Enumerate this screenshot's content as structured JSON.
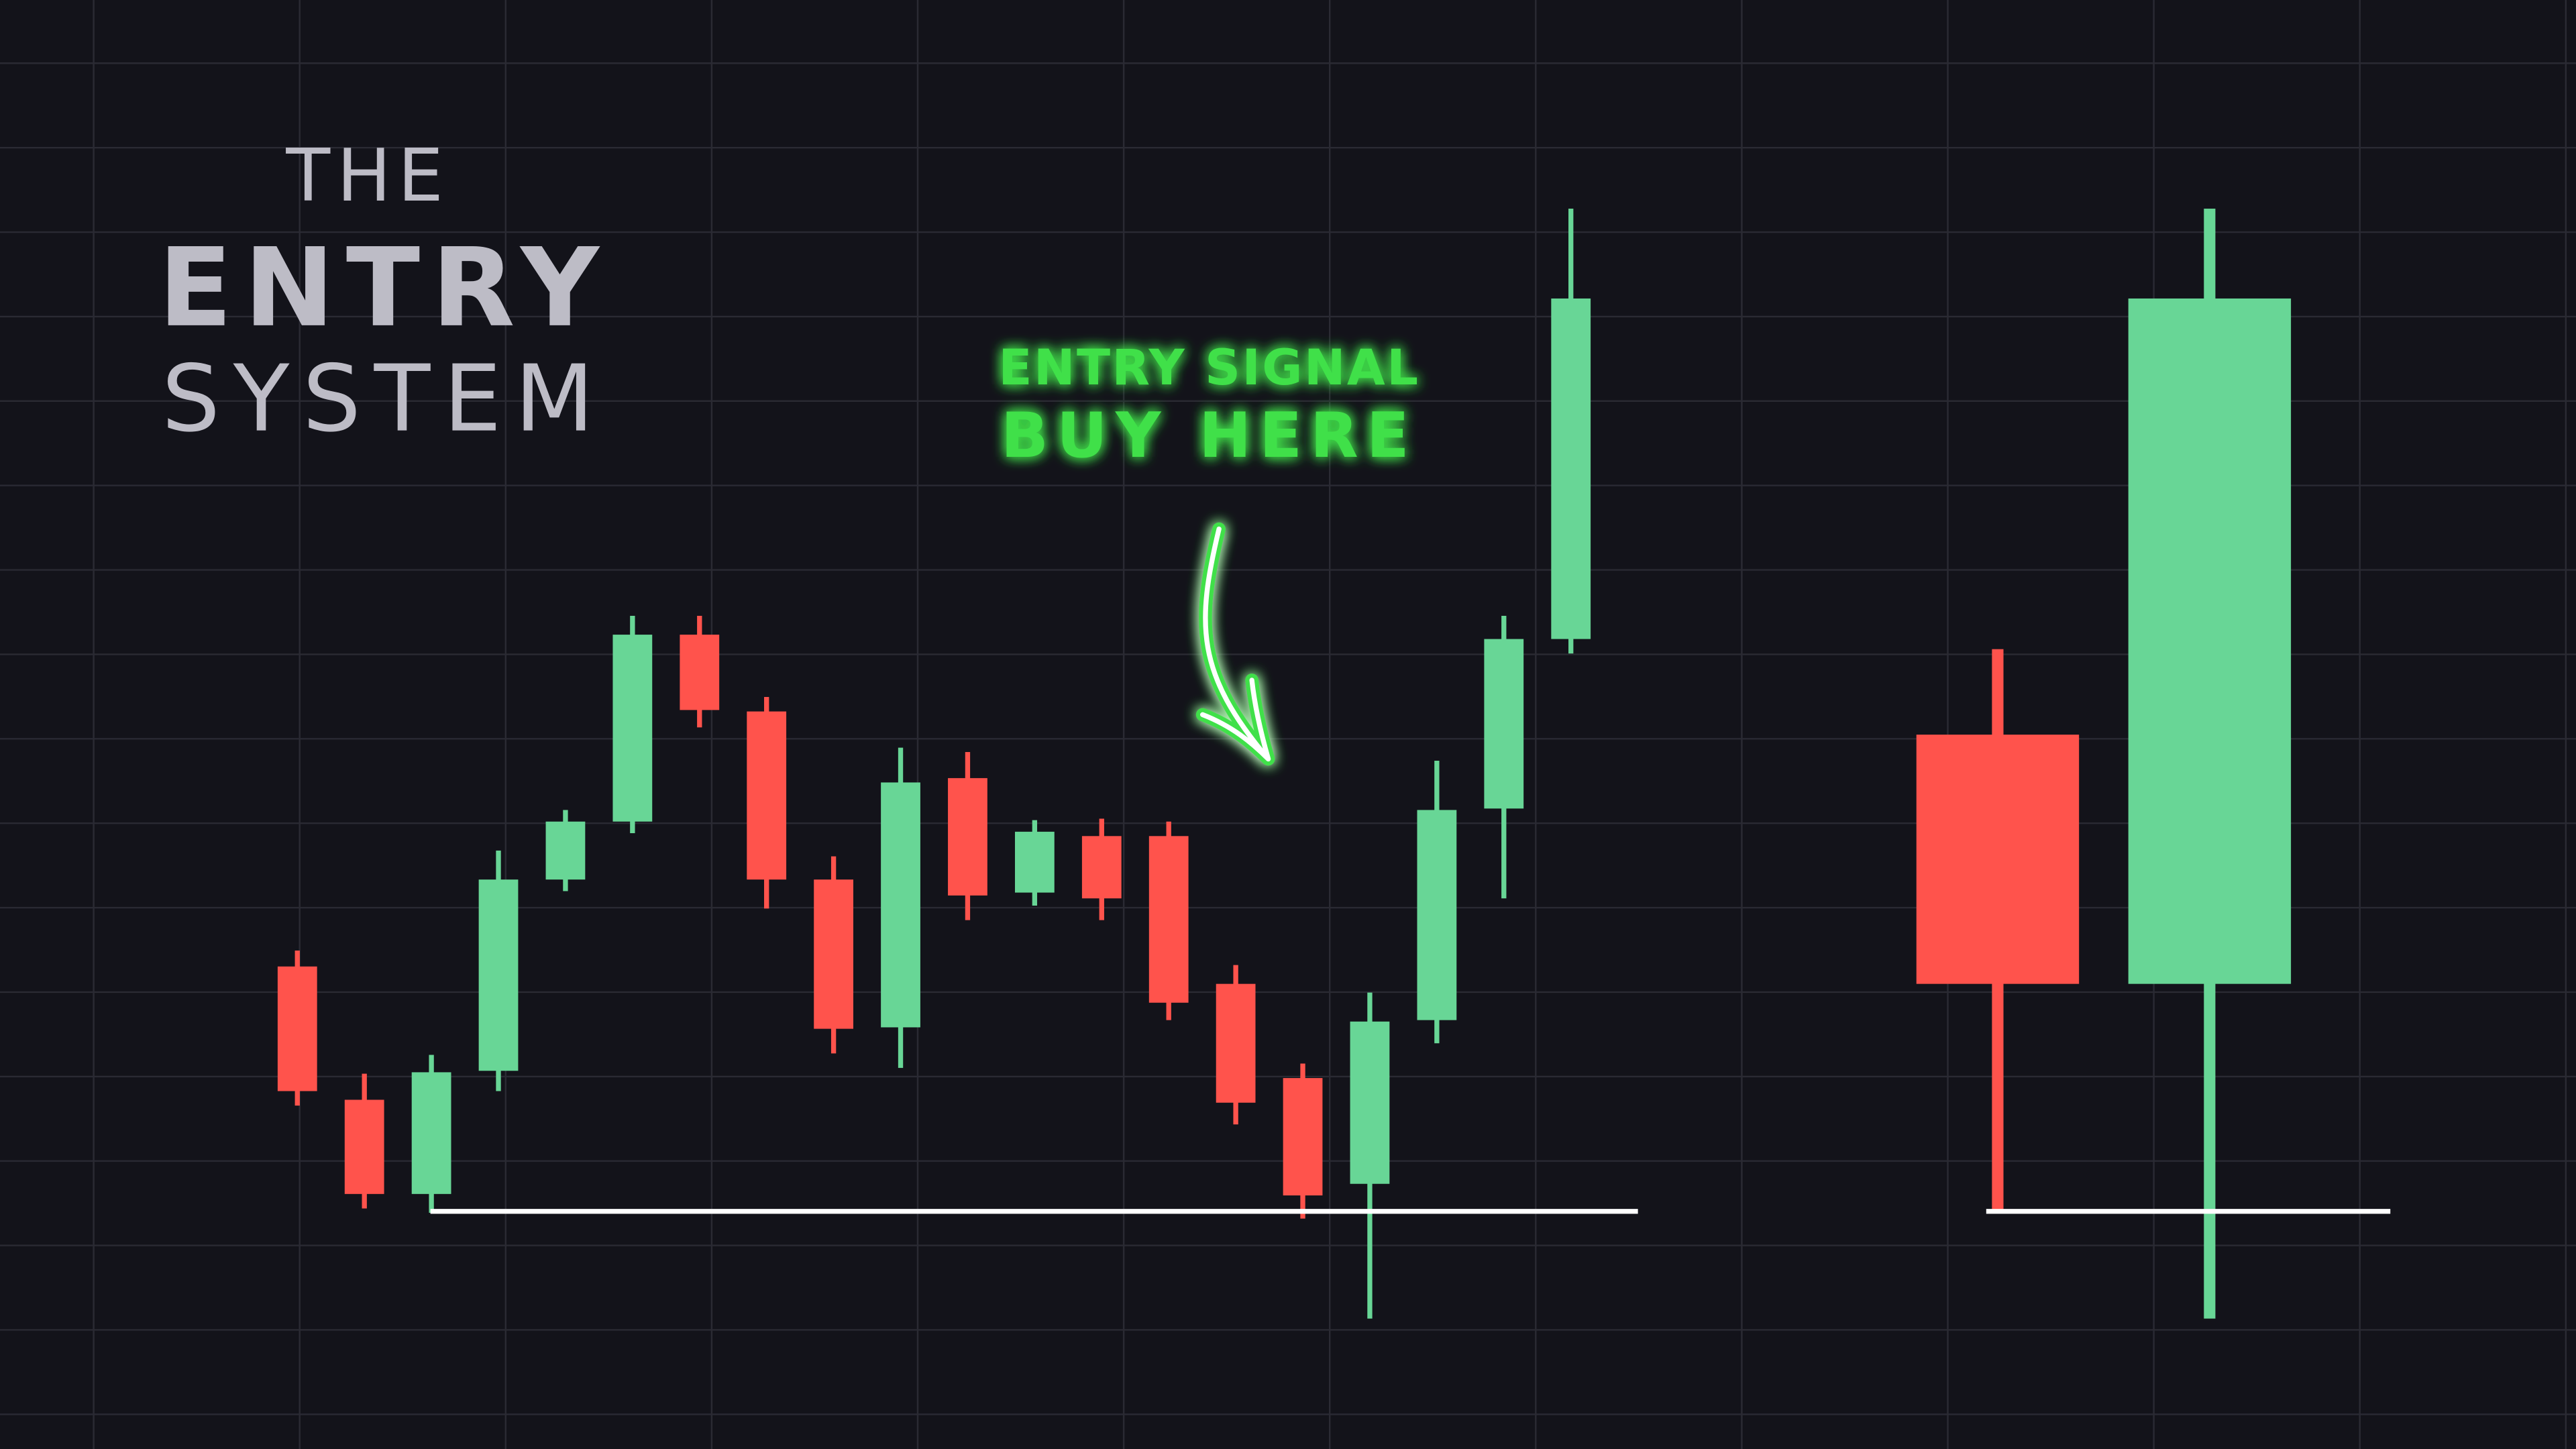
{
  "title": {
    "line1": "THE",
    "line2": "ENTRY",
    "line3": "SYSTEM"
  },
  "annotation": {
    "line1": "ENTRY SIGNAL",
    "line2": "BUY HERE",
    "icon": "curved-arrow-down-icon"
  },
  "colors": {
    "background": "#13131a",
    "grid": "#2a2a33",
    "bullish": "#68d696",
    "bearish": "#ff534c",
    "signal": "#3fe04a",
    "support": "#ffffff",
    "title": "#bdbcc6"
  },
  "chart_data": [
    {
      "type": "candlestick",
      "title": "",
      "xlabel": "",
      "ylabel": "",
      "ylim": [
        0,
        100
      ],
      "grid": true,
      "candles": [
        {
          "open": 33.3,
          "high": 34.4,
          "low": 23.7,
          "close": 24.7
        },
        {
          "open": 24.1,
          "high": 25.9,
          "low": 16.6,
          "close": 17.6
        },
        {
          "open": 17.6,
          "high": 27.2,
          "low": 16.3,
          "close": 26.0
        },
        {
          "open": 26.1,
          "high": 41.3,
          "low": 24.7,
          "close": 39.3
        },
        {
          "open": 39.3,
          "high": 44.1,
          "low": 38.5,
          "close": 43.3
        },
        {
          "open": 43.3,
          "high": 57.5,
          "low": 42.5,
          "close": 56.2
        },
        {
          "open": 56.2,
          "high": 57.5,
          "low": 49.8,
          "close": 51.0
        },
        {
          "open": 50.9,
          "high": 51.9,
          "low": 37.3,
          "close": 39.3
        },
        {
          "open": 39.3,
          "high": 40.9,
          "low": 27.3,
          "close": 29.0
        },
        {
          "open": 29.1,
          "high": 48.4,
          "low": 26.3,
          "close": 46.0
        },
        {
          "open": 46.3,
          "high": 48.1,
          "low": 36.5,
          "close": 38.2
        },
        {
          "open": 38.4,
          "high": 43.4,
          "low": 37.5,
          "close": 42.6
        },
        {
          "open": 42.3,
          "high": 43.5,
          "low": 36.5,
          "close": 38.0
        },
        {
          "open": 42.3,
          "high": 43.3,
          "low": 29.6,
          "close": 30.8
        },
        {
          "open": 32.1,
          "high": 33.4,
          "low": 22.4,
          "close": 23.9
        },
        {
          "open": 25.6,
          "high": 26.6,
          "low": 15.9,
          "close": 17.5
        },
        {
          "open": 18.3,
          "high": 31.5,
          "low": 9.0,
          "close": 29.5
        },
        {
          "open": 29.6,
          "high": 47.5,
          "low": 28.0,
          "close": 44.1
        },
        {
          "open": 44.2,
          "high": 57.5,
          "low": 38.0,
          "close": 55.9
        },
        {
          "open": 55.9,
          "high": 85.6,
          "low": 54.9,
          "close": 79.4
        }
      ],
      "support_level": 16.4,
      "entry_level": 42.4
    },
    {
      "type": "candlestick",
      "title": "",
      "ylim": [
        0,
        100
      ],
      "candles": [
        {
          "open": 49.3,
          "high": 55.2,
          "low": 16.3,
          "close": 32.1
        },
        {
          "open": 32.1,
          "high": 85.6,
          "low": 9.0,
          "close": 79.4
        }
      ],
      "support_level": 16.4
    }
  ]
}
